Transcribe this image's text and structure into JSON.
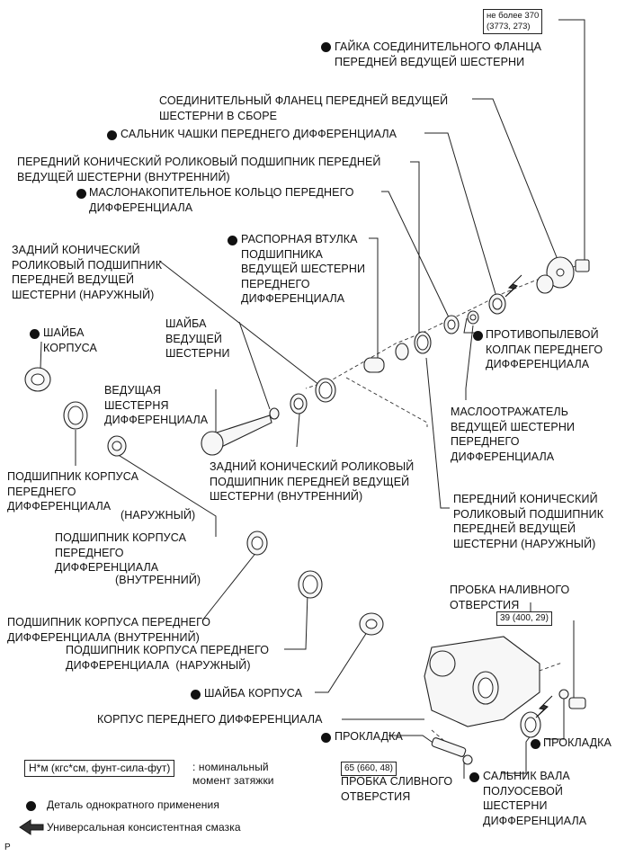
{
  "labels": {
    "flange_nut": "ГАЙКА СОЕДИНИТЕЛЬНОГО ФЛАНЦА\nПЕРЕДНЕЙ ВЕДУЩЕЙ ШЕСТЕРНИ",
    "flange_assy": "СОЕДИНИТЕЛЬНЫЙ ФЛАНЕЦ ПЕРЕДНЕЙ ВЕДУЩЕЙ\nШЕСТЕРНИ В СБОРЕ",
    "oil_seal": "САЛЬНИК ЧАШКИ ПЕРЕДНЕГО ДИФФЕРЕНЦИАЛА",
    "front_bearing_inner": "ПЕРЕДНИЙ КОНИЧЕСКИЙ РОЛИКОВЫЙ ПОДШИПНИК ПЕРЕДНЕЙ\nВЕДУЩЕЙ ШЕСТЕРНИ (ВНУТРЕННИЙ)",
    "oil_slinger_ring": "МАСЛОНАКОПИТЕЛЬНОЕ КОЛЬЦО ПЕРЕДНЕГО\nДИФФЕРЕНЦИАЛА",
    "spacer": "РАСПОРНАЯ ВТУЛКА\nПОДШИПНИКА\nВЕДУЩЕЙ ШЕСТЕРНИ\nПЕРЕДНЕГО\nДИФФЕРЕНЦИАЛА",
    "rear_bearing_outer": "ЗАДНИЙ КОНИЧЕСКИЙ\nРОЛИКОВЫЙ ПОДШИПНИК\nПЕРЕДНЕЙ ВЕДУЩЕЙ\nШЕСТЕРНИ (НАРУЖНЫЙ)",
    "case_washer_top": "ШАЙБА\nКОРПУСА",
    "pinion_washer": "ШАЙБА\nВЕДУЩЕЙ\nШЕСТЕРНИ",
    "dust_cover": "ПРОТИВОПЫЛЕВОЙ\nКОЛПАК ПЕРЕДНЕГО\nДИФФЕРЕНЦИАЛА",
    "drive_pinion": "ВЕДУЩАЯ\nШЕСТЕРНЯ\nДИФФЕРЕНЦИАЛА",
    "slinger": "МАСЛООТРАЖАТЕЛЬ\nВЕДУЩЕЙ ШЕСТЕРНИ\nПЕРЕДНЕГО\nДИФФЕРЕНЦИАЛА",
    "rear_bearing_inner": "ЗАДНИЙ КОНИЧЕСКИЙ РОЛИКОВЫЙ\nПОДШИПНИК ПЕРЕДНЕЙ ВЕДУЩЕЙ\nШЕСТЕРНИ (ВНУТРЕННИЙ)",
    "case_bearing_outer_left": "ПОДШИПНИК КОРПУСА\nПЕРЕДНЕГО\nДИФФЕРЕНЦИАЛА",
    "outer_suffix": "(НАРУЖНЫЙ)",
    "front_bearing_outer": "ПЕРЕДНИЙ КОНИЧЕСКИЙ\nРОЛИКОВЫЙ ПОДШИПНИК\nПЕРЕДНЕЙ ВЕДУЩЕЙ\nШЕСТЕРНИ (НАРУЖНЫЙ)",
    "case_bearing_inner_left": "ПОДШИПНИК КОРПУСА\nПЕРЕДНЕГО\nДИФФЕРЕНЦИАЛА",
    "inner_suffix": "(ВНУТРЕННИЙ)",
    "filler_plug": "ПРОБКА НАЛИВНОГО\nОТВЕРСТИЯ",
    "case_bearing_inner_mid": "ПОДШИПНИК КОРПУСА ПЕРЕДНЕГО\nДИФФЕРЕНЦИАЛА (ВНУТРЕННИЙ)",
    "case_bearing_outer_mid": "ПОДШИПНИК КОРПУСА ПЕРЕДНЕГО\nДИФФЕРЕНЦИАЛА  (НАРУЖНЫЙ)",
    "case_washer_bottom": "ШАЙБА КОРПУСА",
    "carrier": "КОРПУС ПЕРЕДНЕГО ДИФФЕРЕНЦИАЛА",
    "gasket_left": "ПРОКЛАДКА",
    "gasket_right": "ПРОКЛАДКА",
    "drain_plug": "ПРОБКА СЛИВНОГО\nОТВЕРСТИЯ",
    "side_gear_seal": "САЛЬНИК ВАЛА\nПОЛУОСЕВОЙ\nШЕСТЕРНИ\nДИФФЕРЕНЦИАЛА"
  },
  "torques": {
    "flange_nut": "не более 370\n(3773, 273)",
    "filler_plug": "39 (400, 29)",
    "drain_plug": "65 (660, 48)"
  },
  "legend": {
    "torque_box": "Н*м (кгс*см, фунт-сила-фут)",
    "torque_desc": ": номинальный\nмомент затяжки",
    "non_reusable": "Деталь однократного применения",
    "grease": "Универсальная консистентная смазка"
  },
  "corner_mark": "P"
}
